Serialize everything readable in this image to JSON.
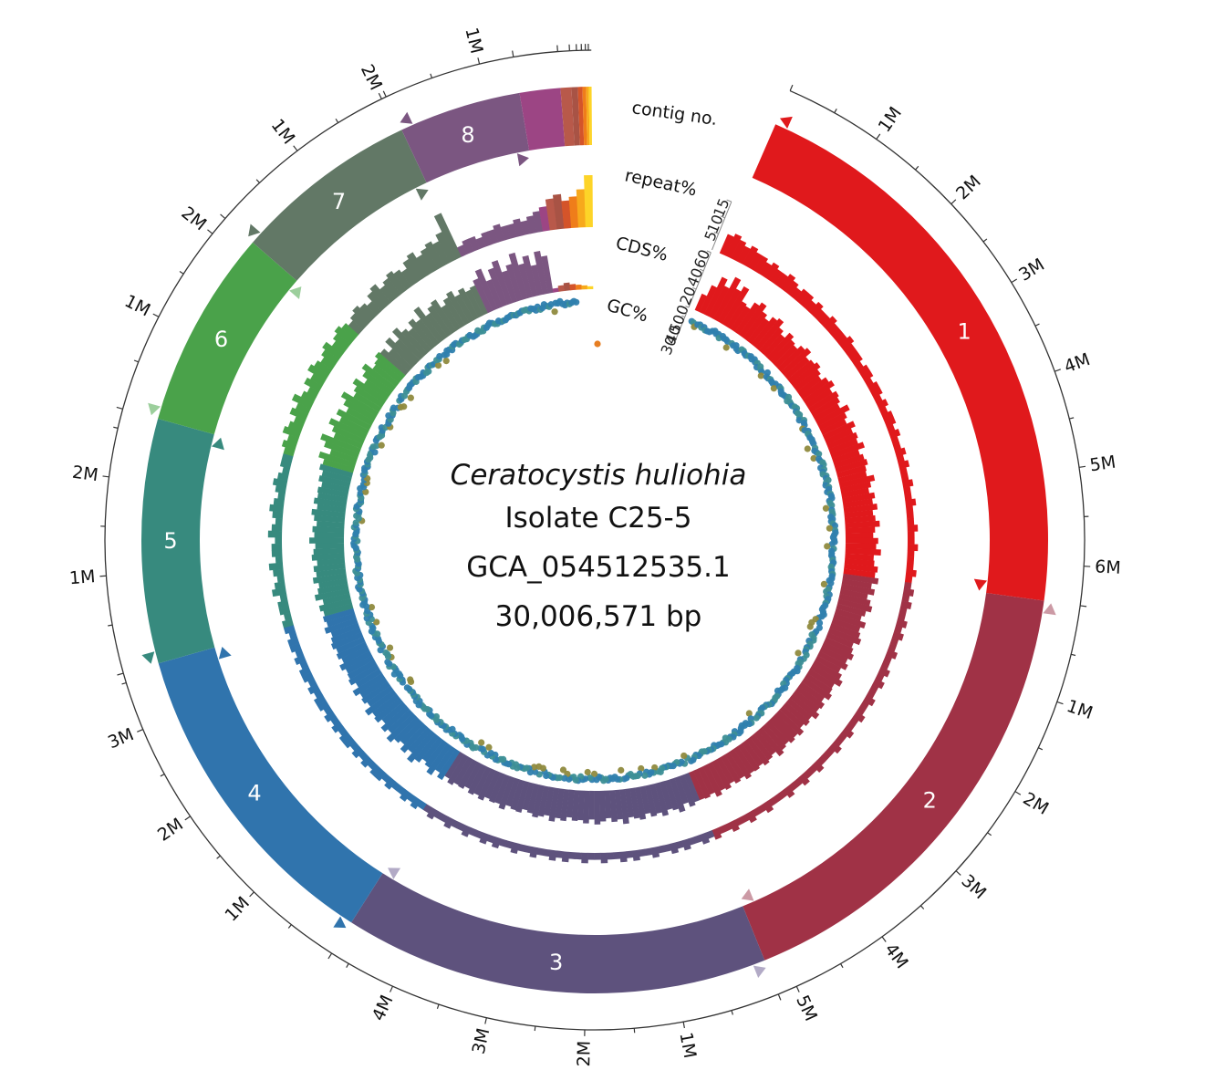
{
  "chart_data": {
    "type": "circular-genome",
    "title": {
      "species": "Ceratocystis huliohia",
      "isolate": "Isolate C25-5",
      "accession": "GCA_054512535.1",
      "size": "30,006,571 bp"
    },
    "total_bp": 30006571,
    "tracks": [
      {
        "key": "contig",
        "label": "contig no."
      },
      {
        "key": "repeat",
        "label": "repeat%",
        "ticks": [
          5,
          10,
          15
        ],
        "range": [
          0,
          15
        ]
      },
      {
        "key": "cds",
        "label": "CDS%",
        "ticks": [
          0,
          20,
          40,
          60
        ],
        "range": [
          0,
          60
        ]
      },
      {
        "key": "gc",
        "label": "GC%",
        "ticks": [
          30,
          40,
          50
        ],
        "range": [
          25,
          55
        ]
      }
    ],
    "scale_unit": "M",
    "contigs": [
      {
        "id": "1",
        "length_mb": 6.4,
        "color": "#e0191c",
        "start_marker_color": "#e0191c",
        "end_marker_color": "#e0191c"
      },
      {
        "id": "2",
        "length_mb": 5.2,
        "color": "#a03246",
        "start_marker_color": "#cc9aa5",
        "end_marker_color": "#cc9aa5"
      },
      {
        "id": "3",
        "length_mb": 4.7,
        "color": "#5e527d",
        "start_marker_color": "#b2aac6",
        "end_marker_color": "#b2aac6"
      },
      {
        "id": "4",
        "length_mb": 3.6,
        "color": "#3074ad",
        "start_marker_color": "#3074ad",
        "end_marker_color": "#3074ad"
      },
      {
        "id": "5",
        "length_mb": 2.7,
        "color": "#378a7e",
        "start_marker_color": "#378a7e",
        "end_marker_color": "#378a7e"
      },
      {
        "id": "6",
        "length_mb": 2.2,
        "color": "#4aa24a",
        "start_marker_color": "#9ccf9c",
        "end_marker_color": "#9ccf9c"
      },
      {
        "id": "7",
        "length_mb": 2.05,
        "color": "#627866",
        "start_marker_color": "#627866",
        "end_marker_color": "#627866"
      },
      {
        "id": "8",
        "length_mb": 1.35,
        "color": "#7b5681",
        "start_marker_color": "#7b5681",
        "end_marker_color": "#7b5681"
      },
      {
        "id": "",
        "length_mb": 0.45,
        "color": "#9c4584",
        "start_marker_color": "",
        "end_marker_color": ""
      },
      {
        "id": "",
        "length_mb": 0.12,
        "color": "#b8594a",
        "start_marker_color": "",
        "end_marker_color": ""
      },
      {
        "id": "",
        "length_mb": 0.07,
        "color": "#a85345",
        "start_marker_color": "",
        "end_marker_color": ""
      },
      {
        "id": "",
        "length_mb": 0.05,
        "color": "#d4542a",
        "start_marker_color": "",
        "end_marker_color": ""
      },
      {
        "id": "",
        "length_mb": 0.04,
        "color": "#ef7d1a",
        "start_marker_color": "",
        "end_marker_color": ""
      },
      {
        "id": "",
        "length_mb": 0.03,
        "color": "#f7a91c",
        "start_marker_color": "",
        "end_marker_color": ""
      },
      {
        "id": "",
        "length_mb": 0.03,
        "color": "#fdd428",
        "start_marker_color": "",
        "end_marker_color": ""
      }
    ],
    "cds_percent_by_contig": {
      "1": [
        18,
        30,
        42,
        35,
        48,
        38,
        44,
        30,
        28,
        36,
        40,
        33,
        29,
        35,
        38,
        31,
        27,
        34,
        30,
        28,
        33,
        36,
        29,
        31,
        34,
        30,
        27,
        32,
        35,
        29,
        33,
        31,
        28,
        36,
        30,
        27,
        34,
        29,
        32,
        30,
        35,
        28,
        31,
        33,
        30,
        29,
        36,
        31,
        28,
        33,
        30,
        34,
        29,
        31,
        35,
        30,
        28,
        33,
        31,
        36,
        29,
        30,
        34,
        32
      ],
      "2": [
        36,
        30,
        34,
        28,
        32,
        35,
        30,
        27,
        33,
        29,
        31,
        34,
        28,
        30,
        33,
        29,
        32,
        27,
        31,
        35,
        29,
        30,
        33,
        28,
        32,
        30,
        34,
        29,
        31,
        28,
        33,
        30,
        32,
        29,
        31,
        34,
        28,
        30,
        32,
        29,
        31,
        30,
        33,
        29,
        31,
        28,
        32,
        30,
        34,
        29,
        31,
        30
      ],
      "3": [
        30,
        33,
        28,
        35,
        31,
        29,
        34,
        30,
        32,
        28,
        33,
        31,
        29,
        35,
        30,
        32,
        28,
        31,
        34,
        29,
        33,
        30,
        31,
        28,
        32,
        30,
        34,
        29,
        31,
        33,
        30,
        28,
        32,
        31,
        29,
        34,
        30,
        31,
        29,
        33,
        30,
        32,
        28,
        31,
        30,
        33,
        29
      ],
      "4": [
        34,
        29,
        36,
        31,
        28,
        33,
        38,
        30,
        35,
        29,
        32,
        37,
        30,
        34,
        28,
        33,
        31,
        36,
        29,
        32,
        30,
        35,
        28,
        33,
        31,
        30,
        34,
        29,
        32,
        30,
        33,
        31,
        29,
        34,
        30,
        32
      ],
      "5": [
        30,
        33,
        28,
        35,
        31,
        29,
        34,
        30,
        32,
        28,
        33,
        31,
        29,
        35,
        30,
        32,
        28,
        31,
        34,
        29,
        33,
        30,
        31,
        28,
        32,
        30,
        34
      ],
      "6": [
        32,
        38,
        28,
        36,
        42,
        30,
        34,
        40,
        31,
        37,
        29,
        35,
        41,
        30,
        33,
        38,
        28,
        34,
        39,
        30,
        32,
        36
      ],
      "7": [
        34,
        28,
        38,
        30,
        40,
        33,
        29,
        36,
        31,
        42,
        30,
        35,
        38,
        28,
        33,
        37,
        30,
        34,
        29,
        31
      ],
      "8": [
        36,
        44,
        30,
        40,
        46,
        33,
        38,
        48,
        35,
        42,
        31,
        44,
        38
      ],
      "small": [
        4,
        6,
        8,
        6,
        5,
        4,
        3
      ]
    },
    "repeat_percent_by_contig": {
      "1": [
        6,
        7,
        6,
        5,
        6,
        5,
        5,
        4,
        5,
        4,
        4,
        5,
        4,
        3,
        4,
        4,
        3,
        4,
        3,
        3,
        4,
        3,
        3,
        3,
        4,
        3,
        3,
        3,
        2,
        3,
        3,
        2,
        3,
        3,
        2,
        3,
        2,
        3,
        3,
        2,
        3,
        2,
        2,
        3,
        2,
        3,
        2,
        2,
        3,
        2,
        2,
        3,
        2,
        2,
        2,
        3,
        2,
        2,
        3,
        2,
        2,
        2,
        3,
        2
      ],
      "2": [
        2,
        3,
        2,
        3,
        2,
        2,
        3,
        2,
        3,
        2,
        2,
        3,
        2,
        2,
        3,
        2,
        3,
        2,
        2,
        3,
        2,
        2,
        3,
        2,
        2,
        3,
        2,
        2,
        3,
        2,
        2,
        2,
        3,
        2,
        2,
        3,
        2,
        2,
        3,
        2,
        2,
        2,
        3,
        2,
        2,
        3,
        2,
        2,
        3,
        2,
        2,
        3
      ],
      "3": [
        2,
        3,
        2,
        2,
        3,
        2,
        3,
        2,
        2,
        3,
        2,
        2,
        3,
        2,
        3,
        2,
        2,
        3,
        2,
        2,
        3,
        2,
        2,
        3,
        2,
        3,
        2,
        2,
        3,
        2,
        2,
        3,
        2,
        2,
        3,
        2,
        3,
        2,
        2,
        3,
        2,
        2,
        3,
        2,
        2,
        3,
        2
      ],
      "4": [
        2,
        3,
        2,
        3,
        2,
        2,
        3,
        2,
        3,
        3,
        2,
        3,
        2,
        3,
        2,
        3,
        3,
        2,
        3,
        2,
        3,
        2,
        3,
        3,
        2,
        3,
        2,
        3,
        3,
        2,
        3,
        2,
        3,
        3,
        2,
        3
      ],
      "5": [
        3,
        2,
        3,
        3,
        2,
        4,
        3,
        2,
        3,
        4,
        2,
        3,
        3,
        2,
        4,
        3,
        2,
        3,
        4,
        3,
        2,
        3,
        4,
        3,
        2,
        3,
        3
      ],
      "6": [
        3,
        4,
        3,
        5,
        4,
        3,
        5,
        4,
        6,
        4,
        3,
        5,
        4,
        6,
        5,
        4,
        5,
        6,
        4,
        5,
        6,
        5
      ],
      "7": [
        4,
        5,
        6,
        5,
        4,
        6,
        7,
        5,
        6,
        7,
        6,
        5,
        7,
        8,
        6,
        7,
        8,
        7,
        9,
        14
      ],
      "8": [
        3,
        4,
        4,
        3,
        4,
        4,
        5,
        4,
        4,
        5,
        4,
        5,
        6
      ],
      "small": [
        7,
        9,
        10,
        8,
        9,
        11,
        16
      ]
    },
    "gc_percent_mean": 48,
    "gc_outlier_note": "scattered points below mean (~44%) shown in olive/brown"
  }
}
